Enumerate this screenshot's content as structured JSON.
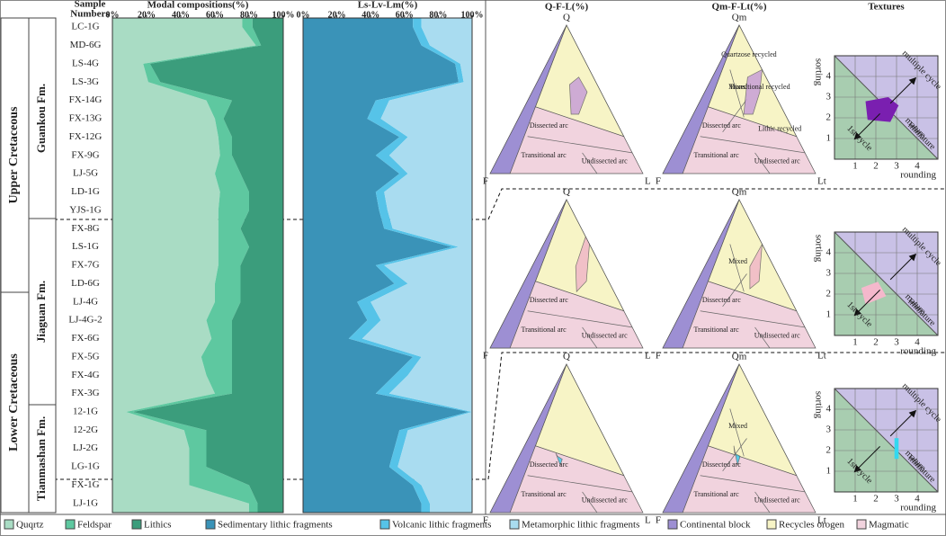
{
  "stratigraphy": {
    "periods": [
      "Upper Cretaceous",
      "Lower Cretaceous"
    ],
    "formations": [
      "Guankou Fm.",
      "Jiaguan Fm.",
      "Tianmashan Fm."
    ]
  },
  "fields": [
    {
      "name": "Continental block",
      "color": "#9d8fd3"
    },
    {
      "name": "Recycles orogen",
      "color": "#f7f4c6"
    },
    {
      "name": "Magmatic",
      "color": "#f1d3de"
    }
  ],
  "chart_data": [
    {
      "type": "area",
      "title": "Modal compositions(%)",
      "ylabel_lines": [
        "Sample",
        "Numbers"
      ],
      "categories": [
        "LC-1G",
        "MD-6G",
        "LS-4G",
        "LS-3G",
        "FX-14G",
        "FX-13G",
        "FX-12G",
        "FX-9G",
        "LJ-5G",
        "LD-1G",
        "YJS-1G",
        "FX-8G",
        "LS-1G",
        "FX-7G",
        "LD-6G",
        "LJ-4G",
        "LJ-4G-2",
        "FX-6G",
        "FX-5G",
        "FX-4G",
        "FX-3G",
        "12-1G",
        "12-2G",
        "LJ-2G",
        "LG-1G",
        "FX-1G",
        "LJ-1G"
      ],
      "xlim": [
        0,
        100
      ],
      "xticks": [
        {
          "value": 0,
          "label": "0%"
        },
        {
          "value": 20,
          "label": "20%"
        },
        {
          "value": 40,
          "label": "40%"
        },
        {
          "value": 60,
          "label": "60%"
        },
        {
          "value": 80,
          "label": "80%"
        },
        {
          "value": 100,
          "label": "100%"
        }
      ],
      "series": [
        {
          "name": "Quqrtz",
          "color": "#a9dcc4",
          "values": [
            76,
            84,
            18,
            21,
            55,
            60,
            62,
            63,
            60,
            63,
            62,
            62,
            62,
            62,
            60,
            60,
            55,
            58,
            52,
            55,
            60,
            8,
            42,
            45,
            45,
            45,
            80
          ]
        },
        {
          "name": "Feldspar",
          "color": "#5ec8a0",
          "values": [
            6,
            3,
            4,
            7,
            15,
            5,
            8,
            7,
            15,
            17,
            18,
            13,
            18,
            13,
            15,
            15,
            15,
            12,
            18,
            15,
            10,
            4,
            13,
            10,
            10,
            35,
            5
          ]
        },
        {
          "name": "Lithics",
          "color": "#3b9d7c",
          "values": [
            18,
            13,
            78,
            72,
            30,
            35,
            30,
            30,
            25,
            20,
            20,
            25,
            20,
            25,
            25,
            25,
            30,
            30,
            30,
            30,
            30,
            88,
            45,
            45,
            45,
            20,
            15
          ]
        }
      ]
    },
    {
      "type": "area",
      "title": "Ls-Lv-Lm(%)",
      "xlim": [
        0,
        100
      ],
      "xticks": [
        {
          "value": 0,
          "label": "0%"
        },
        {
          "value": 20,
          "label": "20%"
        },
        {
          "value": 40,
          "label": "40%"
        },
        {
          "value": 60,
          "label": "60%"
        },
        {
          "value": 80,
          "label": "80%"
        },
        {
          "value": 100,
          "label": "100%"
        }
      ],
      "series": [
        {
          "name": "Sedimentary lithic fragments",
          "color": "#3a93b8",
          "values": [
            65,
            70,
            90,
            92,
            43,
            38,
            57,
            43,
            57,
            43,
            45,
            48,
            88,
            43,
            54,
            32,
            38,
            27,
            65,
            54,
            43,
            98,
            57,
            54,
            51,
            65,
            70
          ]
        },
        {
          "name": "Volcanic lithic fragments",
          "color": "#56c3e8",
          "values": [
            5,
            5,
            3,
            3,
            8,
            8,
            5,
            8,
            5,
            5,
            5,
            5,
            4,
            5,
            8,
            8,
            8,
            8,
            5,
            8,
            8,
            2,
            5,
            5,
            5,
            5,
            5
          ]
        },
        {
          "name": "Metamorphic lithic fragments",
          "color": "#a9dcf0",
          "values": [
            30,
            25,
            7,
            5,
            49,
            54,
            38,
            49,
            38,
            52,
            50,
            47,
            8,
            52,
            38,
            60,
            54,
            65,
            30,
            38,
            49,
            0,
            38,
            41,
            44,
            30,
            25
          ]
        }
      ]
    },
    {
      "type": "ternary",
      "title": "Q-F-L(%)",
      "apexes": [
        "Q",
        "F",
        "L"
      ],
      "regions": [
        "Dissected arc",
        "Transitional arc",
        "Undissected arc"
      ]
    },
    {
      "type": "ternary",
      "title": "Qm-F-Lt(%)",
      "apexes": [
        "Qm",
        "F",
        "Lt"
      ],
      "regions": [
        "Dissected arc",
        "Transitional arc",
        "Undissected arc",
        "Mixed",
        "Quartzose recycled",
        "Transitional recycled",
        "Lithic recycled"
      ]
    },
    {
      "type": "ternary",
      "apexes": [
        "Q",
        "F",
        "L"
      ],
      "regions": [
        "Dissected arc",
        "Transitional arc",
        "Undissected arc"
      ]
    },
    {
      "type": "ternary",
      "apexes": [
        "Qm",
        "F",
        "Lt"
      ],
      "regions": [
        "Dissected arc",
        "Transitional arc",
        "Undissected arc",
        "Mixed"
      ]
    },
    {
      "type": "ternary",
      "apexes": [
        "Q",
        "F",
        "L"
      ],
      "regions": [
        "Dissected arc",
        "Transitional arc",
        "Undissected arc"
      ]
    },
    {
      "type": "ternary",
      "apexes": [
        "Qm",
        "F",
        "Lt"
      ],
      "regions": [
        "Dissected arc",
        "Transitional arc",
        "Undissected arc",
        "Mixed"
      ]
    },
    {
      "type": "texture",
      "title": "Textures",
      "xlabel": "rounding",
      "ylabel": "sorting",
      "xlim": [
        0,
        5
      ],
      "ylim": [
        0,
        5
      ],
      "xticks": [
        1,
        2,
        3,
        4
      ],
      "yticks": [
        1,
        2,
        3,
        4
      ],
      "annotations": [
        "multiple cycle",
        "mature",
        "immature",
        "1st cycle"
      ]
    },
    {
      "type": "texture",
      "xlabel": "rounding",
      "ylabel": "sorting",
      "xlim": [
        0,
        5
      ],
      "ylim": [
        0,
        5
      ],
      "xticks": [
        1,
        2,
        3,
        4
      ],
      "yticks": [
        1,
        2,
        3,
        4
      ],
      "annotations": [
        "multiple cycle",
        "mature",
        "immature",
        "1st cycle"
      ]
    },
    {
      "type": "texture",
      "xlabel": "rounding",
      "ylabel": "sorting",
      "xlim": [
        0,
        5
      ],
      "ylim": [
        0,
        5
      ],
      "xticks": [
        1,
        2,
        3,
        4
      ],
      "yticks": [
        1,
        2,
        3,
        4
      ],
      "annotations": [
        "multiple cycle",
        "mature",
        "immature",
        "1st cycle"
      ]
    }
  ]
}
